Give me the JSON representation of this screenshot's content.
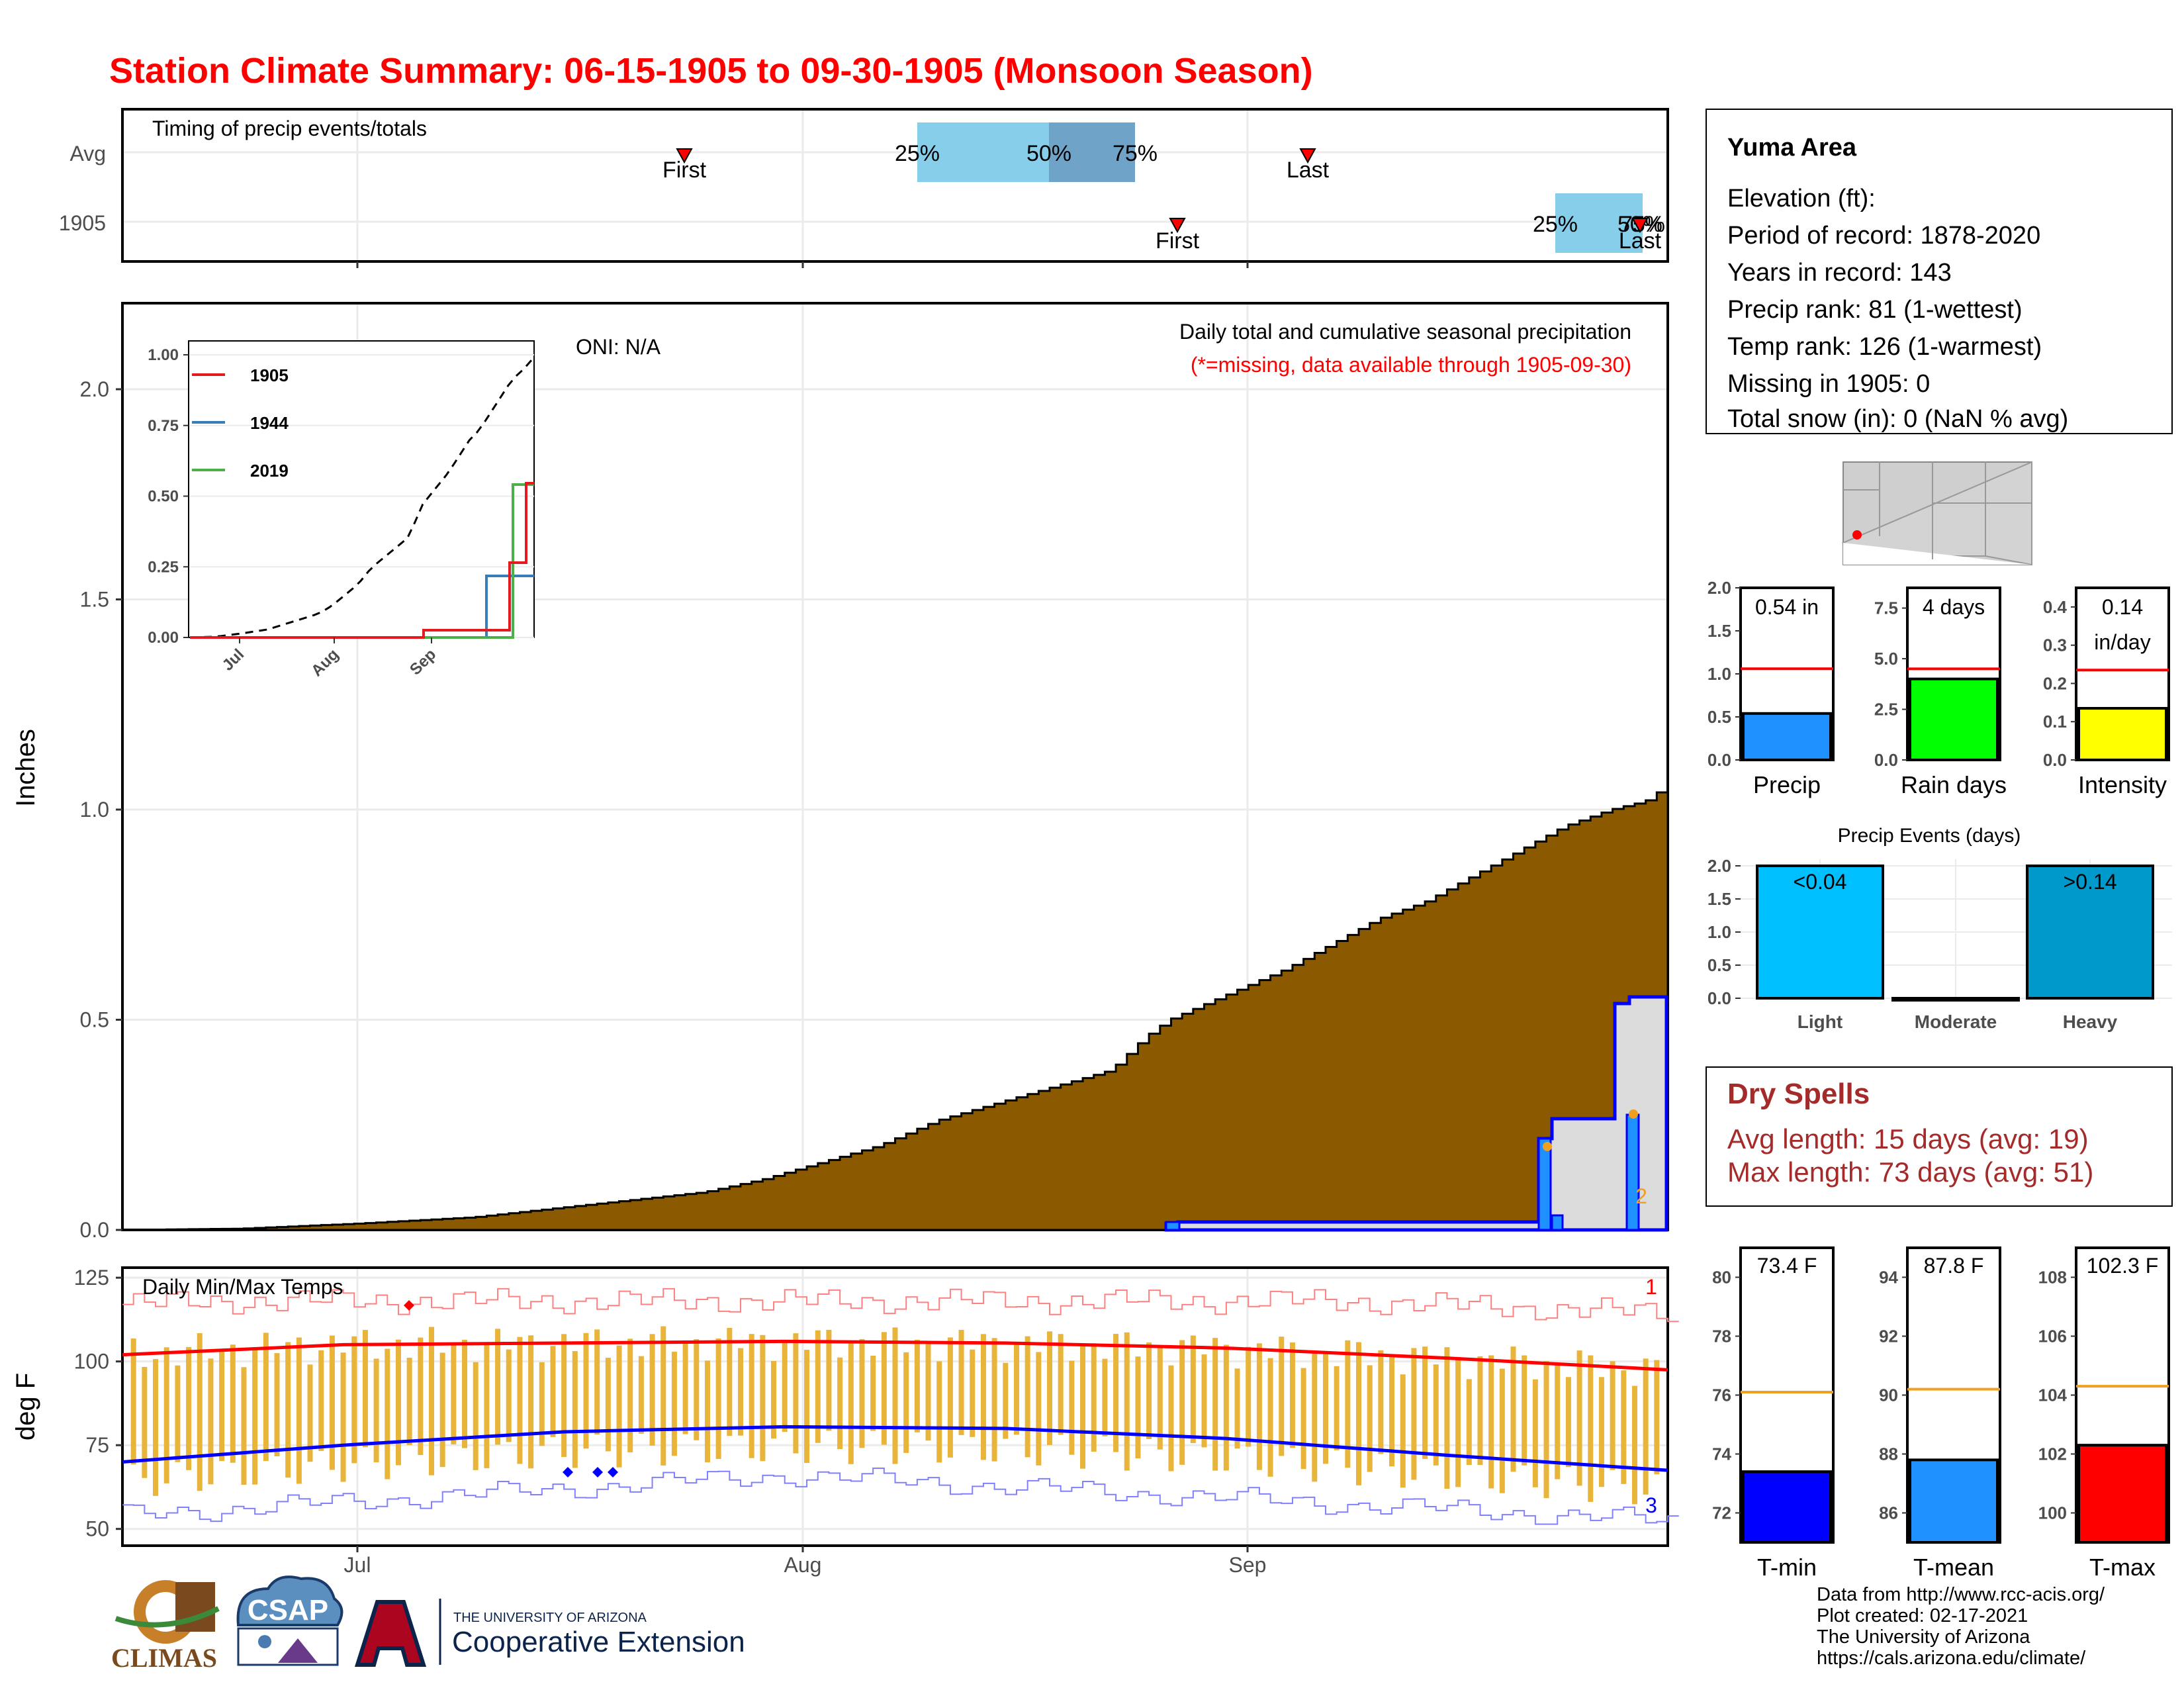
{
  "title": "Station Climate Summary: 06-15-1905 to 09-30-1905 (Monsoon Season)",
  "colors": {
    "title": "#ff0000",
    "precip_fill": "#8b5a00",
    "tmax_line": "#ff0000",
    "tmin_line": "#0000ff",
    "temp_bar": "#e8b43a",
    "dry_spell": "#a52a2a"
  },
  "timing_panel": {
    "label": "Timing of precip events/totals",
    "rows": [
      "Avg",
      "1905"
    ],
    "avg": {
      "first": "First",
      "last": "Last",
      "q25": "25%",
      "q50": "50%",
      "q75": "75%",
      "first_day": 40,
      "last_day": 90,
      "q25_day": 62,
      "q50_day": 72,
      "q75_day": 78
    },
    "y1905": {
      "first": "First",
      "last": "Last",
      "q25": "25%",
      "q50": "50%",
      "q75": "75%",
      "first_day": 80,
      "last_day": 116,
      "q25_day": 110,
      "q50_day": 116,
      "q75_day": 116
    }
  },
  "main_panel": {
    "ylabel": "Inches",
    "yticks": [
      "0.0",
      "0.5",
      "1.0",
      "1.5",
      "2.0"
    ],
    "xticks": [
      "Jul",
      "Aug",
      "Sep"
    ],
    "oni": "ONI: N/A",
    "caption1": "Daily total and cumulative seasonal precipitation",
    "caption2": "(*=missing, data available through 1905-09-30)",
    "marker_label": "2"
  },
  "inset": {
    "yticks": [
      "0.00",
      "0.25",
      "0.50",
      "0.75",
      "1.00"
    ],
    "xticks": [
      "Jul",
      "Aug",
      "Sep"
    ],
    "legend": [
      {
        "name": "1905",
        "color": "#e41a1c"
      },
      {
        "name": "1944",
        "color": "#377eb8"
      },
      {
        "name": "2019",
        "color": "#4daf4a"
      }
    ]
  },
  "temp_panel": {
    "ylabel": "deg F",
    "title": "Daily Min/Max Temps",
    "yticks": [
      "50",
      "75",
      "100",
      "125"
    ],
    "xticks": [
      "Jul",
      "Aug",
      "Sep"
    ],
    "rank_max": "1",
    "rank_min": "3"
  },
  "station_box": {
    "name": "Yuma Area",
    "lines": [
      "Elevation (ft):",
      "Period of record: 1878-2020",
      "Years in record: 143",
      "Precip rank: 81 (1-wettest)",
      "Temp rank: 126 (1-warmest)",
      "Missing in 1905: 0",
      "Total snow (in): 0 (NaN % avg)"
    ]
  },
  "mini_bars": [
    {
      "label": "Precip",
      "value_text": "0.54 in",
      "value": 0.54,
      "avg": 1.06,
      "max": 2.0,
      "ticks": [
        "0.0",
        "0.5",
        "1.0",
        "1.5",
        "2.0"
      ],
      "color": "#1e90ff"
    },
    {
      "label": "Rain days",
      "value_text": "4 days",
      "value": 4,
      "avg": 4.5,
      "max": 8.5,
      "ticks": [
        "0.0",
        "2.5",
        "5.0",
        "7.5"
      ],
      "color": "#00ff00"
    },
    {
      "label": "Intensity",
      "value_text": "0.14",
      "value_text2": "in/day",
      "value": 0.135,
      "avg": 0.235,
      "max": 0.45,
      "ticks": [
        "0.0",
        "0.1",
        "0.2",
        "0.3",
        "0.4"
      ],
      "color": "#ffff00"
    }
  ],
  "events": {
    "title": "Precip Events (days)",
    "ticks": [
      "0.0",
      "0.5",
      "1.0",
      "1.5",
      "2.0"
    ],
    "bars": [
      {
        "label": "Light",
        "value_text": "<0.04",
        "value": 2,
        "color": "#00bfff"
      },
      {
        "label": "Moderate",
        "value_text": "",
        "value": 0,
        "color": "#0000ff"
      },
      {
        "label": "Heavy",
        "value_text": ">0.14",
        "value": 2,
        "color": "#0099cc"
      }
    ]
  },
  "dry_spells": {
    "title": "Dry Spells",
    "avg": "Avg length: 15 days (avg: 19)",
    "max": "Max length: 73 days (avg: 51)"
  },
  "temp_bars": [
    {
      "label": "T-min",
      "value_text": "73.4 F",
      "value": 73.4,
      "avg": 76.1,
      "min": 71,
      "max": 81,
      "ticks": [
        "72",
        "74",
        "76",
        "78",
        "80"
      ],
      "color": "#0000ff"
    },
    {
      "label": "T-mean",
      "value_text": "87.8 F",
      "value": 87.8,
      "avg": 90.2,
      "min": 85,
      "max": 95,
      "ticks": [
        "86",
        "88",
        "90",
        "92",
        "94"
      ],
      "color": "#1e90ff"
    },
    {
      "label": "T-max",
      "value_text": "102.3 F",
      "value": 102.3,
      "avg": 104.3,
      "min": 99,
      "max": 109,
      "ticks": [
        "100",
        "102",
        "104",
        "106",
        "108"
      ],
      "color": "#ff0000"
    }
  ],
  "footer": {
    "lines": [
      "Data from http://www.rcc-acis.org/",
      "Plot created: 02-17-2021",
      "The University of Arizona",
      "https://cals.arizona.edu/climate/"
    ],
    "logo_climas": "CLIMAS",
    "logo_csap": "CSAP",
    "logo_ua_top": "THE UNIVERSITY OF ARIZONA",
    "logo_ua_bottom": "Cooperative Extension"
  },
  "chart_data": [
    {
      "type": "line",
      "name": "cumulative-average-precip",
      "x_start": "1905-06-15",
      "x_end": "1905-09-30",
      "ylabel": "Inches",
      "ylim": [
        0,
        2.2
      ],
      "cumulative_avg_points": [
        [
          0,
          0
        ],
        [
          10,
          0.003
        ],
        [
          20,
          0.015
        ],
        [
          30,
          0.03
        ],
        [
          40,
          0.06
        ],
        [
          50,
          0.09
        ],
        [
          55,
          0.12
        ],
        [
          60,
          0.16
        ],
        [
          65,
          0.2
        ],
        [
          70,
          0.26
        ],
        [
          75,
          0.3
        ],
        [
          80,
          0.34
        ],
        [
          85,
          0.38
        ],
        [
          88,
          0.46
        ],
        [
          90,
          0.5
        ],
        [
          95,
          0.56
        ],
        [
          100,
          0.62
        ],
        [
          104,
          0.68
        ],
        [
          108,
          0.74
        ],
        [
          112,
          0.78
        ],
        [
          116,
          0.84
        ],
        [
          120,
          0.9
        ],
        [
          124,
          0.96
        ],
        [
          128,
          1.0
        ],
        [
          131,
          1.02
        ],
        [
          133,
          1.06
        ]
      ],
      "observed_1905_points": [
        [
          0,
          0
        ],
        [
          92,
          0
        ],
        [
          92,
          0.02
        ],
        [
          127,
          0.02
        ],
        [
          127,
          0.22
        ],
        [
          129,
          0.26
        ],
        [
          138,
          0.26
        ],
        [
          138,
          0.54
        ],
        [
          140,
          0.54
        ]
      ]
    },
    {
      "type": "line",
      "name": "daily-temperatures",
      "ylabel": "deg F",
      "ylim": [
        45,
        128
      ],
      "avg_max_points": [
        [
          0,
          102
        ],
        [
          20,
          105
        ],
        [
          40,
          105.5
        ],
        [
          60,
          106
        ],
        [
          80,
          105.5
        ],
        [
          100,
          104
        ],
        [
          120,
          101
        ],
        [
          140,
          97.5
        ]
      ],
      "avg_min_points": [
        [
          0,
          70
        ],
        [
          20,
          75
        ],
        [
          40,
          79
        ],
        [
          60,
          80.5
        ],
        [
          80,
          80
        ],
        [
          100,
          77
        ],
        [
          120,
          72
        ],
        [
          140,
          67.5
        ]
      ]
    }
  ]
}
